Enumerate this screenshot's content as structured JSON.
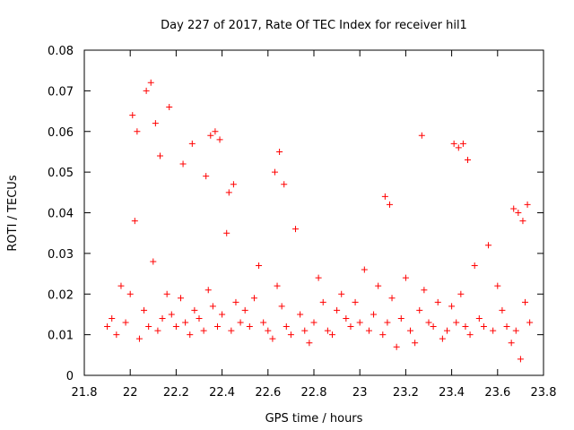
{
  "chart_data": {
    "type": "scatter",
    "title": "Day 227 of 2017, Rate Of TEC Index for receiver hil1",
    "xlabel": "GPS time / hours",
    "ylabel": "ROTI / TECUs",
    "xlim": [
      21.8,
      23.8
    ],
    "ylim": [
      0,
      0.08
    ],
    "xticks": [
      "21.8",
      "22",
      "22.2",
      "22.4",
      "22.6",
      "22.8",
      "23",
      "23.2",
      "23.4",
      "23.6",
      "23.8"
    ],
    "yticks": [
      "0",
      "0.01",
      "0.02",
      "0.03",
      "0.04",
      "0.05",
      "0.06",
      "0.07",
      "0.08"
    ],
    "marker": "+",
    "marker_color": "#ff0000",
    "grid": false,
    "series": [
      {
        "x": [
          21.9,
          21.92,
          21.94,
          21.96,
          21.98,
          22.0,
          22.02,
          22.04,
          22.06,
          22.08,
          22.1,
          22.12,
          22.14,
          22.16,
          22.18,
          22.2,
          22.22,
          22.24,
          22.26,
          22.28,
          22.3,
          22.32,
          22.34,
          22.36,
          22.38,
          22.4,
          22.42,
          22.44,
          22.46,
          22.48,
          22.5,
          22.52,
          22.54,
          22.56,
          22.58,
          22.6,
          22.62,
          22.64,
          22.66,
          22.68,
          22.7,
          22.72,
          22.74,
          22.76,
          22.78,
          22.8,
          22.82,
          22.84,
          22.86,
          22.88,
          22.9,
          22.92,
          22.94,
          22.96,
          22.98,
          23.0,
          23.02,
          23.04,
          23.06,
          23.08,
          23.1,
          23.12,
          23.14,
          23.16,
          23.18,
          23.2,
          23.22,
          23.24,
          23.26,
          23.28,
          23.3,
          23.32,
          23.34,
          23.36,
          23.38,
          23.4,
          23.42,
          23.44,
          23.46,
          23.48,
          23.5,
          23.52,
          23.54,
          23.56,
          23.58,
          23.6,
          23.62,
          23.64,
          23.66,
          23.68,
          23.7,
          23.72,
          23.74,
          22.01,
          22.03,
          22.07,
          22.09,
          22.11,
          22.13,
          22.17,
          22.23,
          22.27,
          22.33,
          22.35,
          22.37,
          22.39,
          23.27,
          23.41,
          23.43,
          23.45,
          23.47,
          22.63,
          22.65,
          22.67,
          22.43,
          22.45,
          23.11,
          23.13,
          23.67,
          23.69,
          23.71,
          23.73
        ],
        "y": [
          0.012,
          0.014,
          0.01,
          0.022,
          0.013,
          0.02,
          0.038,
          0.009,
          0.016,
          0.012,
          0.028,
          0.011,
          0.014,
          0.02,
          0.015,
          0.012,
          0.019,
          0.013,
          0.01,
          0.016,
          0.014,
          0.011,
          0.021,
          0.017,
          0.012,
          0.015,
          0.035,
          0.011,
          0.018,
          0.013,
          0.016,
          0.012,
          0.019,
          0.027,
          0.013,
          0.011,
          0.009,
          0.022,
          0.017,
          0.012,
          0.01,
          0.036,
          0.015,
          0.011,
          0.008,
          0.013,
          0.024,
          0.018,
          0.011,
          0.01,
          0.016,
          0.02,
          0.014,
          0.012,
          0.018,
          0.013,
          0.026,
          0.011,
          0.015,
          0.022,
          0.01,
          0.013,
          0.019,
          0.007,
          0.014,
          0.024,
          0.011,
          0.008,
          0.016,
          0.021,
          0.013,
          0.012,
          0.018,
          0.009,
          0.011,
          0.017,
          0.013,
          0.02,
          0.012,
          0.01,
          0.027,
          0.014,
          0.012,
          0.032,
          0.011,
          0.022,
          0.016,
          0.012,
          0.008,
          0.011,
          0.004,
          0.018,
          0.013,
          0.064,
          0.06,
          0.07,
          0.072,
          0.062,
          0.054,
          0.066,
          0.052,
          0.057,
          0.049,
          0.059,
          0.06,
          0.058,
          0.059,
          0.057,
          0.056,
          0.057,
          0.053,
          0.05,
          0.055,
          0.047,
          0.045,
          0.047,
          0.044,
          0.042,
          0.041,
          0.04,
          0.038,
          0.042
        ]
      }
    ]
  }
}
